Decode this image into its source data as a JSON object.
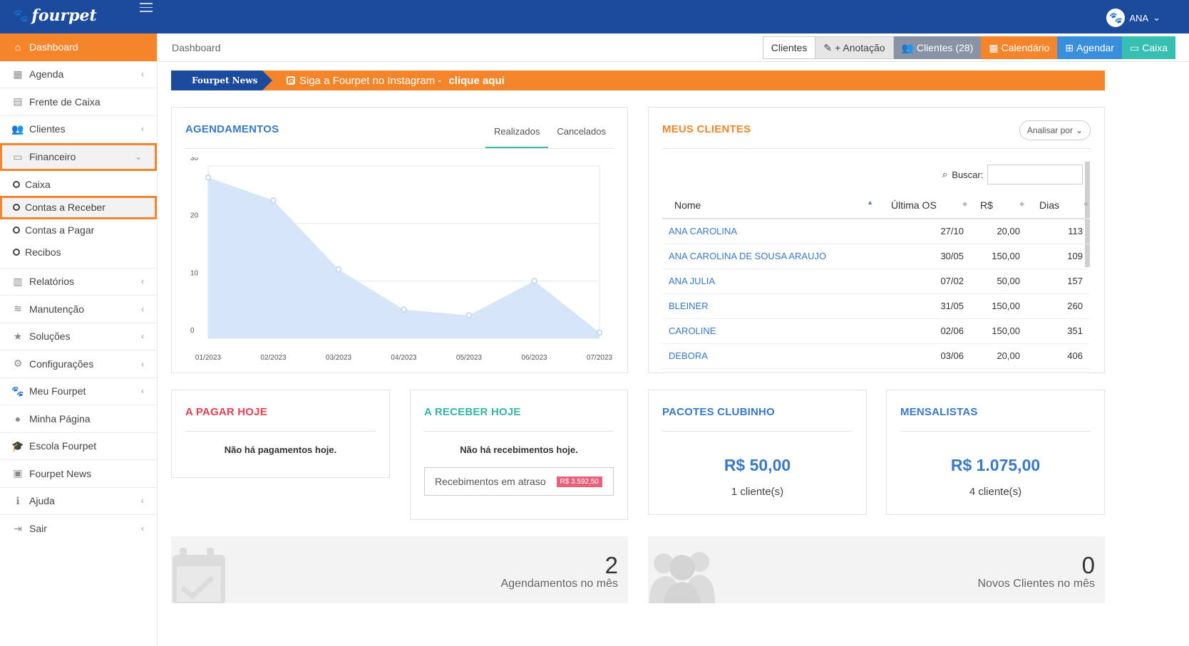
{
  "app": {
    "logo": "fourpet",
    "user": "ANA"
  },
  "sidebar": {
    "items": [
      {
        "label": "Dashboard",
        "icon": "home-icon"
      },
      {
        "label": "Agenda",
        "icon": "calendar-icon"
      },
      {
        "label": "Frente de Caixa",
        "icon": "register-icon"
      },
      {
        "label": "Clientes",
        "icon": "users-icon"
      },
      {
        "label": "Financeiro",
        "icon": "money-icon"
      },
      {
        "label": "Relatórios",
        "icon": "bar-chart-icon"
      },
      {
        "label": "Manutenção",
        "icon": "database-icon"
      },
      {
        "label": "Soluções",
        "icon": "star-icon"
      },
      {
        "label": "Configurações",
        "icon": "gears-icon"
      },
      {
        "label": "Meu Fourpet",
        "icon": "paw-icon"
      },
      {
        "label": "Minha Página",
        "icon": "globe-icon"
      },
      {
        "label": "Escola Fourpet",
        "icon": "graduation-cap-icon"
      },
      {
        "label": "Fourpet News",
        "icon": "newspaper-icon"
      },
      {
        "label": "Ajuda",
        "icon": "info-icon"
      },
      {
        "label": "Sair",
        "icon": "sign-out-icon"
      }
    ],
    "financeiro_sub": [
      "Caixa",
      "Contas a Receber",
      "Contas a Pagar",
      "Recibos"
    ]
  },
  "header": {
    "breadcrumb": "Dashboard",
    "buttons": {
      "clientes": "Clientes",
      "anotacao": "+ Anotação",
      "clientes28": "Clientes (28)",
      "calendario": "Calendário",
      "agendar": "Agendar",
      "caixa": "Caixa"
    }
  },
  "news": {
    "label": "Fourpet News",
    "text": "Siga a Fourpet no Instagram - ",
    "link": "clique aqui"
  },
  "agendamentos": {
    "title": "AGENDAMENTOS",
    "tabs": [
      "Realizados",
      "Cancelados"
    ]
  },
  "chart_data": {
    "type": "area",
    "title": "AGENDAMENTOS",
    "xlabel": "",
    "ylabel": "",
    "x": [
      "01/2023",
      "02/2023",
      "03/2023",
      "04/2023",
      "05/2023",
      "06/2023",
      "07/2023"
    ],
    "values": [
      28,
      24,
      12,
      5,
      4,
      10,
      1
    ],
    "ylim": [
      0,
      30
    ],
    "yticks": [
      0,
      10,
      20,
      30
    ],
    "grid": true,
    "color": "#d6e6f8"
  },
  "clientes": {
    "title": "MEUS CLIENTES",
    "analisar": "Analisar por",
    "buscar_label": "Buscar:",
    "columns": [
      "Nome",
      "Última OS",
      "R$",
      "Dias"
    ],
    "rows": [
      [
        "ANA CAROLINA",
        "27/10",
        "20,00",
        "113"
      ],
      [
        "ANA CAROLINA DE SOUSA ARAUJO",
        "30/05",
        "150,00",
        "109"
      ],
      [
        "ANA JULIA",
        "07/02",
        "50,00",
        "157"
      ],
      [
        "BLEINER",
        "31/05",
        "150,00",
        "260"
      ],
      [
        "CAROLINE",
        "02/06",
        "150,00",
        "351"
      ],
      [
        "DEBORA",
        "03/06",
        "20,00",
        "406"
      ]
    ]
  },
  "pagar": {
    "title": "A PAGAR HOJE",
    "empty": "Não há pagamentos hoje."
  },
  "receber": {
    "title": "A RECEBER HOJE",
    "empty": "Não há recebimentos hoje.",
    "late_label": "Recebimentos em atraso",
    "late_value": "R$ 3.592,50"
  },
  "pacotes": {
    "title": "PACOTES CLUBINHO",
    "value": "R$ 50,00",
    "sub": "1 cliente(s)"
  },
  "mensalistas": {
    "title": "MENSALISTAS",
    "value": "R$ 1.075,00",
    "sub": "4 cliente(s)"
  },
  "stats": {
    "agend_num": "2",
    "agend_label": "Agendamentos no mês",
    "novos_num": "0",
    "novos_label": "Novos Clientes no mês"
  },
  "colors": {
    "brand": "#1c4a9c",
    "accent": "#f4852b",
    "teal": "#37bfb2",
    "link": "#3a78c8"
  }
}
